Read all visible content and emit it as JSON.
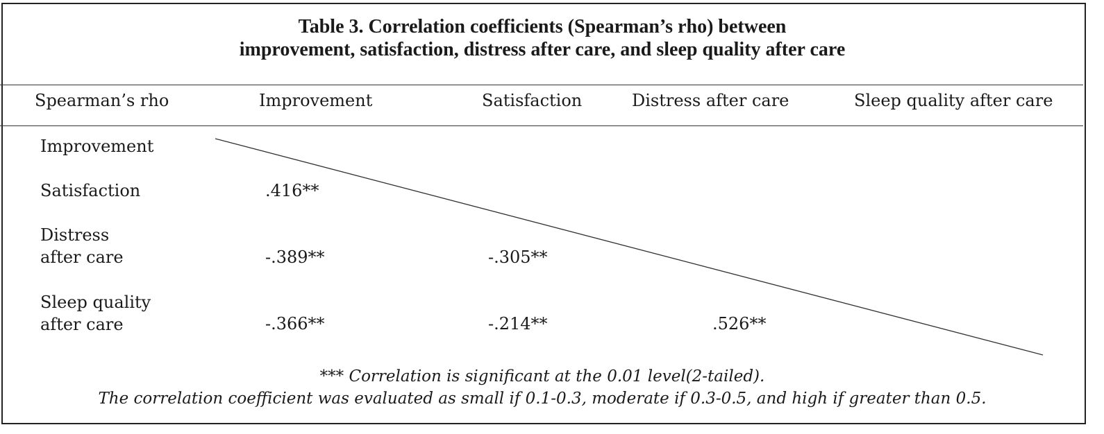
{
  "title": {
    "line1": "Table 3. Correlation coefficients (Spearman’s rho) between",
    "line2": "improvement, satisfaction, distress after care, and sleep quality after care"
  },
  "header": {
    "corner": "Spearman’s rho",
    "columns": [
      "Improvement",
      "Satisfaction",
      "Distress after care",
      "Sleep quality after care"
    ]
  },
  "rows": [
    {
      "label_line1": "Improvement",
      "label_line2": "",
      "values": [
        "",
        "",
        "",
        ""
      ]
    },
    {
      "label_line1": "Satisfaction",
      "label_line2": "",
      "values": [
        ".416**",
        "",
        "",
        ""
      ]
    },
    {
      "label_line1": "Distress",
      "label_line2": "after care",
      "values": [
        "-.389**",
        "-.305**",
        "",
        ""
      ]
    },
    {
      "label_line1": "Sleep quality",
      "label_line2": "after care",
      "values": [
        "-.366**",
        "-.214**",
        ".526**",
        ""
      ]
    }
  ],
  "notes": {
    "significance": "*** Correlation is significant at the 0.01 level(2-tailed).",
    "interpretation": "The correlation coefficient was evaluated as small if 0.1-0.3, moderate if 0.3-0.5, and high if greater than 0.5."
  },
  "colors": {
    "text": "#1a1a1a",
    "rule": "#333333",
    "background": "#ffffff"
  }
}
